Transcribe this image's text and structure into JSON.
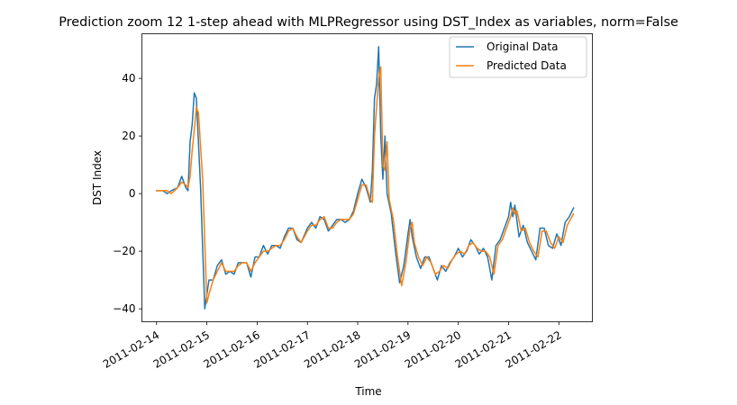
{
  "chart_data": {
    "type": "line",
    "title": "Prediction zoom 12 1-step ahead with MLPRegressor using DST_Index as variables, norm=False",
    "xlabel": "Time",
    "ylabel": "DST Index",
    "x_ticks": [
      "2011-02-14",
      "2011-02-15",
      "2011-02-16",
      "2011-02-17",
      "2011-02-18",
      "2011-02-19",
      "2011-02-20",
      "2011-02-21",
      "2011-02-22"
    ],
    "x_range": [
      "2011-02-13T17:00",
      "2011-02-22T16:00"
    ],
    "y_ticks": [
      -40,
      -20,
      0,
      20,
      40
    ],
    "ylim": [
      -44.5,
      55.5
    ],
    "grid": false,
    "legend_position": "top-right",
    "colors": {
      "original": "#1f77b4",
      "predicted": "#ff7f0e"
    },
    "series": [
      {
        "name": "Original Data",
        "color": "#1f77b4",
        "points": [
          [
            "2011-02-14T00:00",
            1
          ],
          [
            "2011-02-14T03:00",
            1
          ],
          [
            "2011-02-14T05:00",
            0
          ],
          [
            "2011-02-14T07:00",
            1
          ],
          [
            "2011-02-14T10:00",
            2
          ],
          [
            "2011-02-14T12:00",
            6
          ],
          [
            "2011-02-14T14:00",
            2
          ],
          [
            "2011-02-14T15:00",
            1
          ],
          [
            "2011-02-14T16:00",
            18
          ],
          [
            "2011-02-14T17:00",
            24
          ],
          [
            "2011-02-14T18:00",
            35
          ],
          [
            "2011-02-14T19:00",
            33
          ],
          [
            "2011-02-14T21:00",
            2
          ],
          [
            "2011-02-14T23:00",
            -40
          ],
          [
            "2011-02-15T01:00",
            -30
          ],
          [
            "2011-02-15T03:00",
            -30
          ],
          [
            "2011-02-15T05:00",
            -25
          ],
          [
            "2011-02-15T07:00",
            -23
          ],
          [
            "2011-02-15T09:00",
            -28
          ],
          [
            "2011-02-15T11:00",
            -27
          ],
          [
            "2011-02-15T13:00",
            -28
          ],
          [
            "2011-02-15T15:00",
            -24
          ],
          [
            "2011-02-15T17:00",
            -24
          ],
          [
            "2011-02-15T19:00",
            -24
          ],
          [
            "2011-02-15T21:00",
            -29
          ],
          [
            "2011-02-15T23:00",
            -22
          ],
          [
            "2011-02-16T01:00",
            -22
          ],
          [
            "2011-02-16T03:00",
            -18
          ],
          [
            "2011-02-16T05:00",
            -21
          ],
          [
            "2011-02-16T07:00",
            -18
          ],
          [
            "2011-02-16T09:00",
            -18
          ],
          [
            "2011-02-16T11:00",
            -19
          ],
          [
            "2011-02-16T13:00",
            -15
          ],
          [
            "2011-02-16T15:00",
            -12
          ],
          [
            "2011-02-16T17:00",
            -12
          ],
          [
            "2011-02-16T19:00",
            -16
          ],
          [
            "2011-02-16T21:00",
            -17
          ],
          [
            "2011-02-17T00:00",
            -12
          ],
          [
            "2011-02-17T02:00",
            -10
          ],
          [
            "2011-02-17T04:00",
            -12
          ],
          [
            "2011-02-17T06:00",
            -8
          ],
          [
            "2011-02-17T08:00",
            -9
          ],
          [
            "2011-02-17T10:00",
            -13
          ],
          [
            "2011-02-17T12:00",
            -11
          ],
          [
            "2011-02-17T14:00",
            -9
          ],
          [
            "2011-02-17T16:00",
            -9
          ],
          [
            "2011-02-17T18:00",
            -10
          ],
          [
            "2011-02-17T20:00",
            -9
          ],
          [
            "2011-02-17T22:00",
            -6
          ],
          [
            "2011-02-18T00:00",
            0
          ],
          [
            "2011-02-18T02:00",
            5
          ],
          [
            "2011-02-18T04:00",
            2
          ],
          [
            "2011-02-18T06:00",
            -3
          ],
          [
            "2011-02-18T07:00",
            8
          ],
          [
            "2011-02-18T08:00",
            33
          ],
          [
            "2011-02-18T09:00",
            38
          ],
          [
            "2011-02-18T10:00",
            51
          ],
          [
            "2011-02-18T11:00",
            20
          ],
          [
            "2011-02-18T12:00",
            5
          ],
          [
            "2011-02-18T13:00",
            20
          ],
          [
            "2011-02-18T14:00",
            0
          ],
          [
            "2011-02-18T16:00",
            -7
          ],
          [
            "2011-02-18T18:00",
            -20
          ],
          [
            "2011-02-18T20:00",
            -31
          ],
          [
            "2011-02-18T22:00",
            -25
          ],
          [
            "2011-02-19T00:00",
            -14
          ],
          [
            "2011-02-19T01:00",
            -9
          ],
          [
            "2011-02-19T02:00",
            -15
          ],
          [
            "2011-02-19T04:00",
            -22
          ],
          [
            "2011-02-19T06:00",
            -26
          ],
          [
            "2011-02-19T08:00",
            -22
          ],
          [
            "2011-02-19T10:00",
            -22
          ],
          [
            "2011-02-19T12:00",
            -26
          ],
          [
            "2011-02-19T14:00",
            -30
          ],
          [
            "2011-02-19T16:00",
            -25
          ],
          [
            "2011-02-19T18:00",
            -27
          ],
          [
            "2011-02-19T20:00",
            -24
          ],
          [
            "2011-02-19T22:00",
            -22
          ],
          [
            "2011-02-20T00:00",
            -19
          ],
          [
            "2011-02-20T02:00",
            -22
          ],
          [
            "2011-02-20T04:00",
            -20
          ],
          [
            "2011-02-20T06:00",
            -16
          ],
          [
            "2011-02-20T08:00",
            -18
          ],
          [
            "2011-02-20T10:00",
            -21
          ],
          [
            "2011-02-20T12:00",
            -19
          ],
          [
            "2011-02-20T14:00",
            -22
          ],
          [
            "2011-02-20T16:00",
            -30
          ],
          [
            "2011-02-20T18:00",
            -18
          ],
          [
            "2011-02-20T20:00",
            -16
          ],
          [
            "2011-02-20T22:00",
            -12
          ],
          [
            "2011-02-21T00:00",
            -8
          ],
          [
            "2011-02-21T01:00",
            -3
          ],
          [
            "2011-02-21T02:00",
            -8
          ],
          [
            "2011-02-21T03:00",
            -4
          ],
          [
            "2011-02-21T05:00",
            -15
          ],
          [
            "2011-02-21T07:00",
            -11
          ],
          [
            "2011-02-21T09:00",
            -17
          ],
          [
            "2011-02-21T11:00",
            -20
          ],
          [
            "2011-02-21T13:00",
            -23
          ],
          [
            "2011-02-21T15:00",
            -12
          ],
          [
            "2011-02-21T17:00",
            -12
          ],
          [
            "2011-02-21T19:00",
            -18
          ],
          [
            "2011-02-21T21:00",
            -19
          ],
          [
            "2011-02-21T23:00",
            -14
          ],
          [
            "2011-02-22T01:00",
            -18
          ],
          [
            "2011-02-22T03:00",
            -10
          ],
          [
            "2011-02-22T05:00",
            -8
          ],
          [
            "2011-02-22T07:00",
            -5
          ]
        ]
      },
      {
        "name": "Predicted Data",
        "color": "#ff7f0e",
        "points": [
          [
            "2011-02-14T00:00",
            1
          ],
          [
            "2011-02-14T03:00",
            1
          ],
          [
            "2011-02-14T05:00",
            1
          ],
          [
            "2011-02-14T07:00",
            0
          ],
          [
            "2011-02-14T10:00",
            2
          ],
          [
            "2011-02-14T12:00",
            4
          ],
          [
            "2011-02-14T14:00",
            3
          ],
          [
            "2011-02-14T15:00",
            2
          ],
          [
            "2011-02-14T16:00",
            6
          ],
          [
            "2011-02-14T17:00",
            15
          ],
          [
            "2011-02-14T18:00",
            22
          ],
          [
            "2011-02-14T19:00",
            30
          ],
          [
            "2011-02-14T20:00",
            28
          ],
          [
            "2011-02-14T22:00",
            5
          ],
          [
            "2011-02-15T00:00",
            -38
          ],
          [
            "2011-02-15T01:00",
            -35
          ],
          [
            "2011-02-15T03:00",
            -30
          ],
          [
            "2011-02-15T05:00",
            -27
          ],
          [
            "2011-02-15T07:00",
            -24
          ],
          [
            "2011-02-15T09:00",
            -27
          ],
          [
            "2011-02-15T11:00",
            -27
          ],
          [
            "2011-02-15T13:00",
            -27
          ],
          [
            "2011-02-15T15:00",
            -25
          ],
          [
            "2011-02-15T17:00",
            -24
          ],
          [
            "2011-02-15T19:00",
            -24
          ],
          [
            "2011-02-15T21:00",
            -27
          ],
          [
            "2011-02-15T23:00",
            -24
          ],
          [
            "2011-02-16T01:00",
            -22
          ],
          [
            "2011-02-16T03:00",
            -20
          ],
          [
            "2011-02-16T05:00",
            -20
          ],
          [
            "2011-02-16T07:00",
            -19
          ],
          [
            "2011-02-16T09:00",
            -18
          ],
          [
            "2011-02-16T11:00",
            -18
          ],
          [
            "2011-02-16T13:00",
            -16
          ],
          [
            "2011-02-16T15:00",
            -13
          ],
          [
            "2011-02-16T17:00",
            -12
          ],
          [
            "2011-02-16T19:00",
            -15
          ],
          [
            "2011-02-16T21:00",
            -17
          ],
          [
            "2011-02-17T00:00",
            -13
          ],
          [
            "2011-02-17T02:00",
            -11
          ],
          [
            "2011-02-17T04:00",
            -11
          ],
          [
            "2011-02-17T06:00",
            -9
          ],
          [
            "2011-02-17T08:00",
            -8
          ],
          [
            "2011-02-17T10:00",
            -12
          ],
          [
            "2011-02-17T12:00",
            -12
          ],
          [
            "2011-02-17T14:00",
            -10
          ],
          [
            "2011-02-17T16:00",
            -9
          ],
          [
            "2011-02-17T18:00",
            -9
          ],
          [
            "2011-02-17T20:00",
            -9
          ],
          [
            "2011-02-17T22:00",
            -7
          ],
          [
            "2011-02-18T00:00",
            -2
          ],
          [
            "2011-02-18T02:00",
            3
          ],
          [
            "2011-02-18T04:00",
            3
          ],
          [
            "2011-02-18T06:00",
            -2
          ],
          [
            "2011-02-18T07:00",
            -3
          ],
          [
            "2011-02-18T08:00",
            20
          ],
          [
            "2011-02-18T09:00",
            30
          ],
          [
            "2011-02-18T10:00",
            40
          ],
          [
            "2011-02-18T11:00",
            44
          ],
          [
            "2011-02-18T12:00",
            10
          ],
          [
            "2011-02-18T13:00",
            8
          ],
          [
            "2011-02-18T14:00",
            18
          ],
          [
            "2011-02-18T15:00",
            -2
          ],
          [
            "2011-02-18T17:00",
            -9
          ],
          [
            "2011-02-18T19:00",
            -22
          ],
          [
            "2011-02-18T21:00",
            -32
          ],
          [
            "2011-02-18T23:00",
            -24
          ],
          [
            "2011-02-19T01:00",
            -12
          ],
          [
            "2011-02-19T02:00",
            -10
          ],
          [
            "2011-02-19T03:00",
            -17
          ],
          [
            "2011-02-19T05:00",
            -22
          ],
          [
            "2011-02-19T07:00",
            -25
          ],
          [
            "2011-02-19T09:00",
            -22
          ],
          [
            "2011-02-19T11:00",
            -24
          ],
          [
            "2011-02-19T13:00",
            -28
          ],
          [
            "2011-02-19T15:00",
            -27
          ],
          [
            "2011-02-19T17:00",
            -25
          ],
          [
            "2011-02-19T19:00",
            -26
          ],
          [
            "2011-02-19T21:00",
            -23
          ],
          [
            "2011-02-19T23:00",
            -21
          ],
          [
            "2011-02-20T01:00",
            -20
          ],
          [
            "2011-02-20T03:00",
            -21
          ],
          [
            "2011-02-20T05:00",
            -18
          ],
          [
            "2011-02-20T07:00",
            -17
          ],
          [
            "2011-02-20T09:00",
            -19
          ],
          [
            "2011-02-20T11:00",
            -20
          ],
          [
            "2011-02-20T13:00",
            -20
          ],
          [
            "2011-02-20T15:00",
            -22
          ],
          [
            "2011-02-20T17:00",
            -28
          ],
          [
            "2011-02-20T19:00",
            -18
          ],
          [
            "2011-02-20T21:00",
            -16
          ],
          [
            "2011-02-20T23:00",
            -12
          ],
          [
            "2011-02-21T01:00",
            -8
          ],
          [
            "2011-02-21T02:00",
            -5
          ],
          [
            "2011-02-21T03:00",
            -7
          ],
          [
            "2011-02-21T04:00",
            -6
          ],
          [
            "2011-02-21T06:00",
            -13
          ],
          [
            "2011-02-21T08:00",
            -12
          ],
          [
            "2011-02-21T10:00",
            -17
          ],
          [
            "2011-02-21T12:00",
            -20
          ],
          [
            "2011-02-21T14:00",
            -22
          ],
          [
            "2011-02-21T16:00",
            -13
          ],
          [
            "2011-02-21T18:00",
            -13
          ],
          [
            "2011-02-21T20:00",
            -17
          ],
          [
            "2011-02-21T22:00",
            -19
          ],
          [
            "2011-02-22T00:00",
            -15
          ],
          [
            "2011-02-22T02:00",
            -17
          ],
          [
            "2011-02-22T04:00",
            -11
          ],
          [
            "2011-02-22T07:00",
            -7
          ]
        ]
      }
    ]
  }
}
